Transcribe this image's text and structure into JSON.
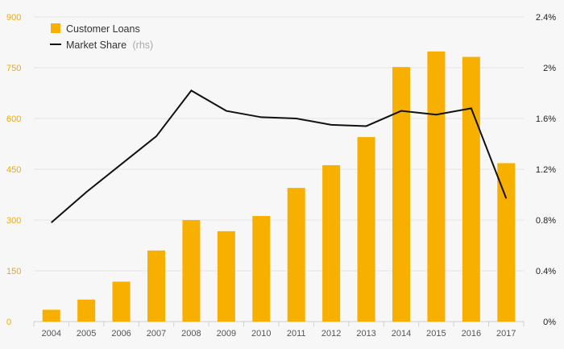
{
  "chart_data": {
    "type": "bar+line",
    "title": "",
    "categories": [
      "2004",
      "2005",
      "2006",
      "2007",
      "2008",
      "2009",
      "2010",
      "2011",
      "2012",
      "2013",
      "2014",
      "2015",
      "2016",
      "2017"
    ],
    "series": [
      {
        "name": "Customer Loans",
        "type": "bar",
        "axis": "left",
        "values": [
          35,
          65,
          118,
          210,
          300,
          267,
          312,
          395,
          462,
          545,
          752,
          798,
          782,
          468
        ]
      },
      {
        "name": "Market Share",
        "name_suffix": "(rhs)",
        "type": "line",
        "axis": "right",
        "values": [
          0.78,
          1.02,
          1.24,
          1.46,
          1.82,
          1.66,
          1.61,
          1.6,
          1.55,
          1.54,
          1.66,
          1.63,
          1.68,
          0.97
        ]
      }
    ],
    "y_left": {
      "ylim": [
        0,
        900
      ],
      "ticks": [
        0,
        150,
        300,
        450,
        600,
        750,
        900
      ],
      "tick_labels": [
        "0",
        "150",
        "300",
        "450",
        "600",
        "750",
        "900"
      ]
    },
    "y_right": {
      "ylim": [
        0,
        2.4
      ],
      "ticks": [
        0,
        0.4,
        0.8,
        1.2,
        1.6,
        2.0,
        2.4
      ],
      "tick_labels": [
        "0%",
        "0.4%",
        "0.8%",
        "1.2%",
        "1.6%",
        "2%",
        "2.4%"
      ]
    },
    "legend": {
      "placement": "top-left",
      "items": [
        {
          "label": "Customer Loans",
          "suffix": ""
        },
        {
          "label": "Market Share",
          "suffix": "(rhs)"
        }
      ]
    },
    "grid": true,
    "colors": {
      "bar": "#f7b000",
      "line": "#111111",
      "left_axis_text": "#f2a900",
      "right_axis_text": "#222222",
      "grid": "#e6e6e6",
      "background": "#f7f7f7"
    }
  }
}
